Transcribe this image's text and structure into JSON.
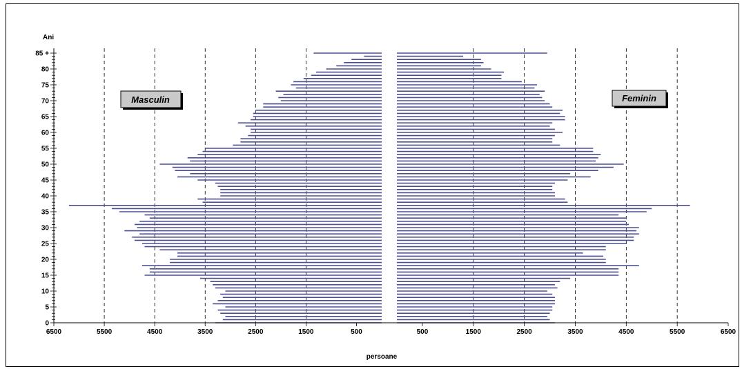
{
  "chart_data": {
    "type": "bar",
    "orientation": "horizontal",
    "title": "",
    "ylabel": "Ani",
    "xlabel": "persoane",
    "y_tick_labels": [
      "0",
      "5",
      "10",
      "15",
      "20",
      "25",
      "30",
      "35",
      "40",
      "45",
      "50",
      "55",
      "60",
      "65",
      "70",
      "75",
      "80",
      "85 +"
    ],
    "x_tick_labels": [
      "6500",
      "5500",
      "4500",
      "3500",
      "2500",
      "1500",
      "500",
      "500",
      "1500",
      "2500",
      "3500",
      "4500",
      "5500",
      "6500"
    ],
    "xlim": [
      -6500,
      6500
    ],
    "ylim": [
      0,
      85
    ],
    "gridlines_x": [
      -5500,
      -4500,
      -3500,
      -2500,
      -1500,
      1500,
      2500,
      3500,
      4500,
      5500
    ],
    "categories": [
      "0",
      "1",
      "2",
      "3",
      "4",
      "5",
      "6",
      "7",
      "8",
      "9",
      "10",
      "11",
      "12",
      "13",
      "14",
      "15",
      "16",
      "17",
      "18",
      "19",
      "20",
      "21",
      "22",
      "23",
      "24",
      "25",
      "26",
      "27",
      "28",
      "29",
      "30",
      "31",
      "32",
      "33",
      "34",
      "35",
      "36",
      "37",
      "38",
      "39",
      "40",
      "41",
      "42",
      "43",
      "44",
      "45",
      "46",
      "47",
      "48",
      "49",
      "50",
      "51",
      "52",
      "53",
      "54",
      "55",
      "56",
      "57",
      "58",
      "59",
      "60",
      "61",
      "62",
      "63",
      "64",
      "65",
      "66",
      "67",
      "68",
      "69",
      "70",
      "71",
      "72",
      "73",
      "74",
      "75",
      "76",
      "77",
      "78",
      "79",
      "80",
      "81",
      "82",
      "83",
      "84",
      "85 +"
    ],
    "series": [
      {
        "name": "Masculin",
        "values": [
          3300,
          3150,
          3100,
          3200,
          3250,
          3100,
          3350,
          3250,
          3150,
          3200,
          3100,
          3300,
          3350,
          3400,
          3600,
          4700,
          4600,
          4600,
          4750,
          4200,
          4200,
          4050,
          4050,
          4400,
          4700,
          4750,
          4900,
          4950,
          4800,
          5100,
          4850,
          4900,
          4800,
          4600,
          4700,
          5200,
          5350,
          6200,
          3550,
          3650,
          3200,
          3200,
          3200,
          3250,
          3300,
          3650,
          4050,
          3800,
          4100,
          4150,
          4400,
          3800,
          3850,
          3650,
          3550,
          3500,
          2950,
          2800,
          2800,
          2650,
          2600,
          2600,
          2700,
          2850,
          2600,
          2550,
          2550,
          2500,
          2350,
          2350,
          2000,
          2050,
          1950,
          2100,
          1700,
          1800,
          1750,
          1550,
          1400,
          1300,
          1100,
          900,
          750,
          600,
          350,
          1350
        ]
      },
      {
        "name": "Feminin",
        "values": [
          3100,
          3000,
          2950,
          3000,
          3050,
          3050,
          3100,
          3100,
          3100,
          3050,
          2950,
          3150,
          3100,
          3200,
          3400,
          4350,
          4350,
          4350,
          4750,
          4100,
          4100,
          4050,
          3650,
          4100,
          4100,
          4500,
          4650,
          4650,
          4750,
          4700,
          4750,
          4550,
          4500,
          4500,
          4350,
          4900,
          5000,
          5750,
          3350,
          3300,
          3100,
          3100,
          3050,
          3050,
          3100,
          3350,
          3800,
          3400,
          3950,
          4250,
          4450,
          3900,
          3950,
          4000,
          3850,
          3850,
          3200,
          3050,
          3050,
          3100,
          3250,
          3100,
          3000,
          3050,
          3300,
          3300,
          3200,
          3250,
          3050,
          3000,
          2900,
          2850,
          2800,
          2900,
          2700,
          2750,
          2450,
          2050,
          2050,
          2100,
          1850,
          1650,
          1700,
          1650,
          1300,
          2950
        ]
      }
    ],
    "legend": [
      {
        "label": "Masculin",
        "placement": "upper-left"
      },
      {
        "label": "Feminin",
        "placement": "upper-right"
      }
    ]
  }
}
